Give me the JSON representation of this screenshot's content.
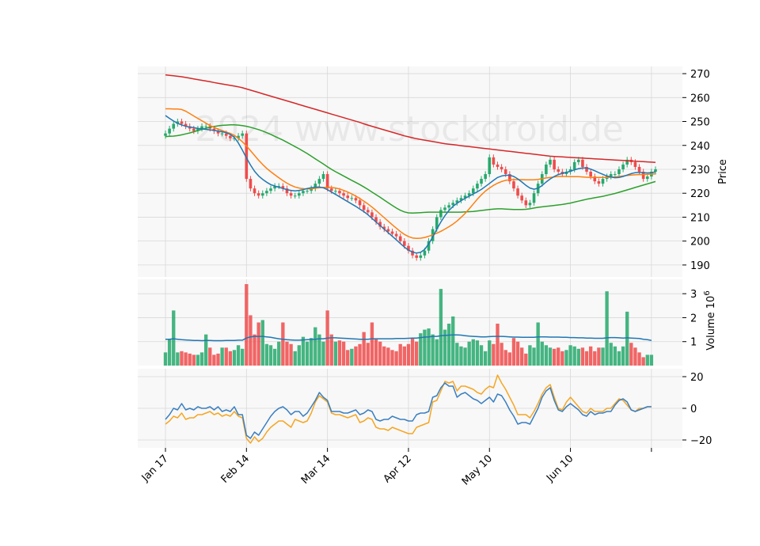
{
  "chart_data": {
    "type": "candlestick",
    "watermark": "2024 www.stockdroid.de",
    "colors": {
      "up": "#26a96c",
      "down": "#f04b4b",
      "panel_bg": "#f8f8f8",
      "grid": "#d8d8d8",
      "ma_fast": "#1f77b4",
      "ma_mid": "#ff7f0e",
      "ma_slow": "#2ca02c",
      "ma_long": "#d62728",
      "volume_ma": "#1f77b4",
      "osc_fast": "#3a7fc1",
      "osc_slow": "#f5a623"
    },
    "x_ticks": [
      {
        "label": "Jan 17",
        "index": 0
      },
      {
        "label": "Feb 14",
        "index": 20
      },
      {
        "label": "Mar 14",
        "index": 40
      },
      {
        "label": "Apr 12",
        "index": 60
      },
      {
        "label": "May 10",
        "index": 80
      },
      {
        "label": "Jun 10",
        "index": 100
      },
      {
        "label": "",
        "index": 120
      }
    ],
    "price_panel": {
      "ylabel": "Price",
      "ylim": [
        185,
        273
      ],
      "yticks": [
        190,
        200,
        210,
        220,
        230,
        240,
        250,
        260,
        270
      ],
      "candle_close": [
        245,
        247,
        249,
        250,
        249,
        248,
        247,
        246,
        247,
        248,
        248,
        247,
        246,
        245,
        245,
        244,
        243,
        243,
        244,
        245,
        226,
        222,
        220,
        219,
        220,
        221,
        222,
        223,
        223,
        222,
        220,
        219,
        219,
        220,
        221,
        221,
        222,
        224,
        226,
        228,
        222,
        221,
        221,
        220,
        219,
        218,
        218,
        217,
        215,
        213,
        212,
        210,
        208,
        206,
        205,
        204,
        203,
        202,
        200,
        198,
        196,
        194,
        193,
        194,
        196,
        200,
        205,
        210,
        213,
        214,
        215,
        216,
        217,
        218,
        219,
        220,
        222,
        224,
        226,
        228,
        235,
        232,
        231,
        230,
        228,
        225,
        222,
        219,
        217,
        215,
        216,
        220,
        224,
        228,
        232,
        234,
        230,
        229,
        228,
        229,
        230,
        233,
        234,
        231,
        229,
        227,
        225,
        224,
        226,
        227,
        228,
        228,
        230,
        232,
        234,
        233,
        231,
        229,
        226,
        227,
        229,
        230
      ],
      "ma_fast": [
        252.5,
        251.3,
        250.2,
        249.2,
        248.6,
        248.0,
        247.7,
        247.4,
        247.1,
        246.9,
        246.7,
        246.5,
        246.3,
        246.0,
        245.7,
        245.3,
        244.6,
        243.4,
        241.0,
        238.0,
        234.8,
        231.8,
        229.2,
        227.2,
        225.8,
        224.6,
        223.6,
        223.0,
        222.5,
        222.0,
        221.5,
        221.2,
        221.0,
        221.2,
        221.5,
        222.0,
        222.3,
        222.5,
        222.6,
        222.3,
        221.5,
        220.5,
        219.5,
        218.5,
        217.5,
        216.5,
        215.5,
        214.5,
        213.4,
        212.3,
        211.0,
        209.5,
        208.0,
        206.5,
        205.0,
        203.5,
        202.0,
        200.5,
        199.0,
        197.5,
        196.2,
        195.4,
        195.0,
        195.3,
        196.5,
        198.8,
        201.7,
        205.0,
        208.0,
        210.6,
        212.8,
        214.5,
        215.8,
        216.9,
        217.9,
        218.8,
        219.7,
        220.6,
        221.6,
        222.8,
        224.1,
        225.4,
        226.6,
        227.2,
        227.5,
        227.5,
        227.0,
        226.0,
        224.7,
        223.3,
        222.2,
        221.7,
        222.1,
        223.2,
        224.7,
        226.0,
        227.0,
        227.8,
        228.3,
        228.7,
        229.2,
        229.8,
        230.3,
        230.6,
        230.6,
        230.1,
        229.4,
        228.6,
        227.9,
        227.2,
        226.8,
        226.5,
        226.6,
        227.0,
        227.6,
        228.2,
        228.6,
        228.7,
        228.6,
        228.5,
        228.6,
        228.9
      ],
      "ma_mid": [
        255.3,
        255.3,
        255.2,
        255.2,
        255.0,
        254.3,
        253.3,
        252.3,
        251.3,
        250.3,
        249.3,
        248.3,
        247.5,
        246.8,
        246.2,
        245.6,
        245.0,
        244.2,
        243.0,
        241.5,
        239.8,
        237.8,
        235.8,
        233.8,
        232.0,
        230.4,
        229.0,
        227.7,
        226.5,
        225.3,
        224.2,
        223.3,
        222.6,
        222.2,
        221.9,
        221.8,
        221.9,
        222.1,
        222.3,
        222.4,
        222.5,
        222.4,
        222.2,
        221.8,
        221.2,
        220.5,
        219.7,
        218.8,
        217.8,
        216.7,
        215.5,
        214.2,
        212.8,
        211.3,
        209.8,
        208.3,
        206.8,
        205.4,
        204.0,
        202.8,
        201.9,
        201.3,
        201.1,
        201.2,
        201.5,
        202.0,
        202.6,
        203.3,
        204.1,
        205.0,
        206.0,
        207.1,
        208.4,
        209.9,
        211.6,
        213.5,
        215.5,
        217.5,
        219.3,
        220.9,
        222.2,
        223.3,
        224.2,
        224.9,
        225.4,
        225.6,
        225.7,
        225.7,
        225.7,
        225.6,
        225.6,
        225.6,
        225.8,
        226.1,
        226.4,
        226.6,
        226.8,
        227.0,
        227.0,
        227.0,
        226.9,
        226.9,
        226.9,
        226.8,
        226.7,
        226.6,
        226.6,
        226.6,
        226.6,
        226.6,
        226.7,
        226.8,
        227.0,
        227.2,
        227.4,
        227.6,
        227.7,
        227.8,
        227.8,
        227.9,
        228.0,
        228.1
      ],
      "ma_slow": [
        243.7,
        243.8,
        243.9,
        244.1,
        244.4,
        244.8,
        245.2,
        245.7,
        246.2,
        246.7,
        247.2,
        247.6,
        247.9,
        248.2,
        248.4,
        248.5,
        248.6,
        248.6,
        248.5,
        248.3,
        248.0,
        247.6,
        247.1,
        246.6,
        246.0,
        245.3,
        244.6,
        243.8,
        243.0,
        242.2,
        241.3,
        240.4,
        239.5,
        238.6,
        237.6,
        236.6,
        235.5,
        234.4,
        233.3,
        232.2,
        231.1,
        230.0,
        229.0,
        228.1,
        227.2,
        226.3,
        225.4,
        224.5,
        223.6,
        222.6,
        221.6,
        220.5,
        219.4,
        218.3,
        217.2,
        216.0,
        214.9,
        213.8,
        212.9,
        212.2,
        211.8,
        211.7,
        211.8,
        211.9,
        212.0,
        212.1,
        212.1,
        212.1,
        212.1,
        212.1,
        212.1,
        212.1,
        212.1,
        212.1,
        212.2,
        212.3,
        212.4,
        212.6,
        212.8,
        213.0,
        213.2,
        213.4,
        213.5,
        213.5,
        213.4,
        213.3,
        213.2,
        213.2,
        213.2,
        213.3,
        213.5,
        213.8,
        214.1,
        214.3,
        214.5,
        214.7,
        214.9,
        215.1,
        215.3,
        215.6,
        215.9,
        216.3,
        216.7,
        217.1,
        217.5,
        217.8,
        218.1,
        218.4,
        218.7,
        219.1,
        219.5,
        219.9,
        220.4,
        220.9,
        221.4,
        221.9,
        222.4,
        222.9,
        223.4,
        223.9,
        224.4,
        224.9
      ],
      "ma_long": [
        269.5,
        269.3,
        269.1,
        268.9,
        268.7,
        268.4,
        268.1,
        267.8,
        267.5,
        267.2,
        266.9,
        266.6,
        266.3,
        266.0,
        265.7,
        265.4,
        265.1,
        264.8,
        264.5,
        264.1,
        263.6,
        263.1,
        262.6,
        262.1,
        261.6,
        261.1,
        260.6,
        260.1,
        259.6,
        259.1,
        258.6,
        258.1,
        257.6,
        257.1,
        256.6,
        256.1,
        255.6,
        255.1,
        254.6,
        254.1,
        253.6,
        253.1,
        252.6,
        252.1,
        251.6,
        251.1,
        250.6,
        250.1,
        249.6,
        249.0,
        248.5,
        248.0,
        247.5,
        247.0,
        246.5,
        246.0,
        245.5,
        245.0,
        244.5,
        244.0,
        243.6,
        243.2,
        242.8,
        242.5,
        242.2,
        241.9,
        241.6,
        241.3,
        241.0,
        240.7,
        240.5,
        240.3,
        240.1,
        239.9,
        239.7,
        239.5,
        239.3,
        239.1,
        238.9,
        238.7,
        238.5,
        238.3,
        238.1,
        237.9,
        237.7,
        237.5,
        237.3,
        237.1,
        236.9,
        236.7,
        236.5,
        236.3,
        236.1,
        235.9,
        235.7,
        235.5,
        235.4,
        235.3,
        235.2,
        235.1,
        235.0,
        234.9,
        234.8,
        234.7,
        234.6,
        234.5,
        234.4,
        234.3,
        234.2,
        234.1,
        234.0,
        233.9,
        233.8,
        233.7,
        233.6,
        233.5,
        233.4,
        233.3,
        233.2,
        233.1,
        233.0,
        232.9
      ]
    },
    "volume_panel": {
      "ylabel": "Volume  10^6",
      "ylim": [
        0,
        3.6
      ],
      "yticks": [
        1,
        2,
        3
      ],
      "values": [
        0.55,
        1.1,
        2.3,
        0.55,
        0.6,
        0.55,
        0.5,
        0.45,
        0.45,
        0.55,
        1.3,
        0.75,
        0.45,
        0.5,
        0.75,
        0.75,
        0.6,
        0.65,
        0.85,
        0.7,
        3.4,
        2.1,
        1.3,
        1.8,
        1.9,
        0.9,
        0.85,
        0.7,
        1.0,
        1.8,
        1.0,
        0.9,
        0.6,
        0.85,
        1.2,
        1.0,
        1.15,
        1.6,
        1.3,
        1.0,
        2.3,
        1.3,
        1.0,
        1.05,
        1.0,
        0.65,
        0.7,
        0.8,
        0.9,
        1.4,
        0.95,
        1.8,
        1.1,
        1.0,
        0.8,
        0.75,
        0.65,
        0.6,
        0.9,
        0.8,
        0.9,
        1.15,
        1.0,
        1.35,
        1.5,
        1.55,
        1.3,
        1.1,
        3.2,
        1.5,
        1.75,
        2.05,
        0.95,
        0.8,
        0.75,
        1.0,
        1.1,
        1.05,
        0.85,
        0.6,
        1.05,
        0.9,
        1.75,
        0.95,
        0.65,
        0.55,
        1.15,
        1.0,
        0.75,
        0.5,
        0.85,
        0.75,
        1.8,
        1.0,
        0.85,
        0.75,
        0.7,
        0.75,
        0.6,
        0.65,
        0.85,
        0.8,
        0.7,
        0.75,
        0.6,
        0.8,
        0.6,
        0.75,
        0.75,
        3.1,
        0.95,
        0.8,
        0.6,
        0.8,
        2.25,
        0.95,
        0.75,
        0.55,
        0.35,
        0.45,
        0.45
      ],
      "ma": [
        1.1,
        1.1,
        1.12,
        1.1,
        1.08,
        1.07,
        1.06,
        1.05,
        1.05,
        1.04,
        1.05,
        1.05,
        1.04,
        1.04,
        1.04,
        1.05,
        1.05,
        1.05,
        1.06,
        1.06,
        1.15,
        1.2,
        1.22,
        1.22,
        1.22,
        1.2,
        1.18,
        1.15,
        1.12,
        1.1,
        1.08,
        1.07,
        1.06,
        1.06,
        1.07,
        1.08,
        1.09,
        1.1,
        1.12,
        1.12,
        1.15,
        1.16,
        1.16,
        1.15,
        1.14,
        1.13,
        1.12,
        1.11,
        1.1,
        1.1,
        1.1,
        1.12,
        1.12,
        1.12,
        1.12,
        1.12,
        1.12,
        1.13,
        1.13,
        1.13,
        1.14,
        1.15,
        1.15,
        1.17,
        1.19,
        1.2,
        1.22,
        1.22,
        1.25,
        1.26,
        1.27,
        1.28,
        1.28,
        1.27,
        1.25,
        1.23,
        1.22,
        1.21,
        1.2,
        1.2,
        1.21,
        1.22,
        1.22,
        1.22,
        1.21,
        1.2,
        1.19,
        1.19,
        1.18,
        1.18,
        1.18,
        1.18,
        1.2,
        1.2,
        1.2,
        1.19,
        1.19,
        1.19,
        1.18,
        1.18,
        1.17,
        1.17,
        1.16,
        1.16,
        1.15,
        1.15,
        1.14,
        1.14,
        1.14,
        1.16,
        1.17,
        1.17,
        1.16,
        1.15,
        1.16,
        1.15,
        1.14,
        1.13,
        1.1,
        1.08,
        1.05
      ]
    },
    "oscillator_panel": {
      "ylim": [
        -25,
        25
      ],
      "yticks": [
        -20,
        0,
        20
      ],
      "ytick_labels": [
        "−20",
        "0",
        "20"
      ],
      "fast": [
        -7,
        -4,
        0,
        -1,
        3,
        -1,
        0,
        -1,
        1,
        0,
        0,
        1,
        -1,
        1,
        -2,
        -1,
        -2,
        1,
        -4,
        -4,
        -17,
        -19,
        -15,
        -17,
        -13,
        -9,
        -5,
        -2,
        0,
        1,
        -1,
        -4,
        -2,
        -2,
        -5,
        -3,
        1,
        5,
        10,
        7,
        5,
        -2,
        -2,
        -2,
        -3,
        -3,
        -2,
        -1,
        -4,
        -3,
        -1,
        -2,
        -7,
        -8,
        -7,
        -7,
        -5,
        -6,
        -7,
        -7,
        -8,
        -8,
        -4,
        -3,
        -3,
        -2,
        7,
        8,
        13,
        16,
        14,
        14,
        7,
        9,
        10,
        8,
        6,
        5,
        3,
        5,
        7,
        4,
        9,
        8,
        4,
        -1,
        -5,
        -10,
        -9,
        -9,
        -10,
        -5,
        0,
        7,
        11,
        13,
        5,
        -1,
        -2,
        1,
        3,
        1,
        -1,
        -4,
        -5,
        -2,
        -4,
        -3,
        -3,
        -2,
        -2,
        2,
        5,
        6,
        4,
        -1,
        -2,
        -1,
        0,
        1,
        1
      ],
      "slow": [
        -10,
        -8,
        -5,
        -6,
        -3,
        -7,
        -6,
        -6,
        -4,
        -4,
        -3,
        -2,
        -4,
        -3,
        -5,
        -4,
        -5,
        -2,
        -5,
        -6,
        -19,
        -22,
        -18,
        -21,
        -19,
        -15,
        -12,
        -10,
        -8,
        -8,
        -10,
        -12,
        -7,
        -8,
        -9,
        -8,
        -3,
        4,
        8,
        6,
        4,
        -3,
        -4,
        -4,
        -5,
        -6,
        -5,
        -4,
        -9,
        -8,
        -6,
        -7,
        -12,
        -13,
        -13,
        -14,
        -12,
        -13,
        -14,
        -15,
        -16,
        -16,
        -12,
        -11,
        -10,
        -9,
        4,
        5,
        11,
        17,
        16,
        17,
        11,
        14,
        14,
        13,
        12,
        10,
        9,
        12,
        14,
        13,
        21,
        16,
        12,
        7,
        2,
        -4,
        -4,
        -4,
        -6,
        -2,
        3,
        9,
        13,
        15,
        7,
        0,
        -1,
        4,
        7,
        4,
        1,
        -2,
        -3,
        0,
        -2,
        -2,
        -2,
        0,
        0,
        3,
        6,
        5,
        2,
        -1,
        -2,
        0,
        0,
        1,
        1
      ]
    }
  }
}
